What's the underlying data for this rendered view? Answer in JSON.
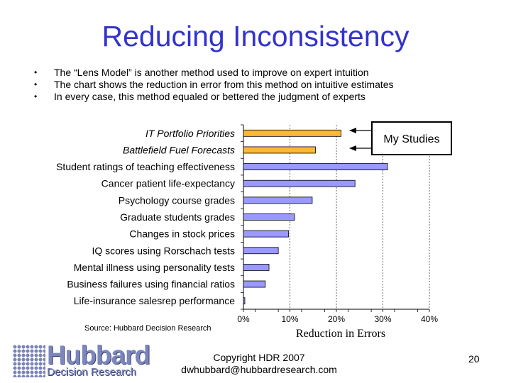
{
  "slide": {
    "title": "Reducing Inconsistency",
    "bullets": [
      "The “Lens Model” is another method used to improve on expert intuition",
      "The chart shows the reduction in error from this method on intuitive estimates",
      "In every case, this method equaled or bettered the judgment of experts"
    ],
    "bullet_glyph": "•",
    "callout": "My Studies",
    "source": "Source: Hubbard Decision Research",
    "logo_main": "Hubbard",
    "logo_sub": "Decision Research",
    "copyright_line1": "Copyright HDR 2007",
    "copyright_line2": "dwhubbard@hubbardresearch.com",
    "page_number": "20"
  },
  "chart_data": {
    "type": "bar",
    "orientation": "horizontal",
    "title": "",
    "xlabel": "Reduction in Errors",
    "ylabel": "",
    "xlim": [
      0,
      0.4
    ],
    "xticks": [
      "0%",
      "10%",
      "20%",
      "30%",
      "40%"
    ],
    "grid": true,
    "categories": [
      "IT Portfolio Priorities",
      "Battlefield Fuel Forecasts",
      "Student ratings of teaching effectiveness",
      "Cancer patient life-expectancy",
      "Psychology course grades",
      "Graduate students grades",
      "Changes in stock prices",
      "IQ scores using Rorschach tests",
      "Mental illness using personality tests",
      "Business failures using financial ratios",
      "Life-insurance salesrep performance"
    ],
    "values": [
      0.21,
      0.155,
      0.31,
      0.24,
      0.148,
      0.11,
      0.097,
      0.075,
      0.055,
      0.047,
      0.003
    ],
    "highlighted": [
      true,
      true,
      false,
      false,
      false,
      false,
      false,
      false,
      false,
      false,
      false
    ],
    "colors": {
      "highlight": "#ffb833",
      "normal": "#9999ff",
      "plot_bg": "#ffffff",
      "grid": "#000000"
    }
  }
}
